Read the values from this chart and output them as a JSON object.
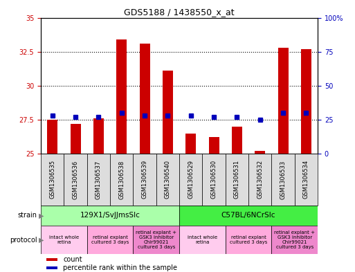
{
  "title": "GDS5188 / 1438550_x_at",
  "samples": [
    "GSM1306535",
    "GSM1306536",
    "GSM1306537",
    "GSM1306538",
    "GSM1306539",
    "GSM1306540",
    "GSM1306529",
    "GSM1306530",
    "GSM1306531",
    "GSM1306532",
    "GSM1306533",
    "GSM1306534"
  ],
  "count_values": [
    27.5,
    27.2,
    27.6,
    33.4,
    33.1,
    31.1,
    26.5,
    26.2,
    27.0,
    25.2,
    32.8,
    32.7
  ],
  "percentile_pct": [
    28,
    27,
    27,
    30,
    28,
    28,
    28,
    27,
    27,
    25,
    30,
    30
  ],
  "ylim_left": [
    25,
    35
  ],
  "ylim_right": [
    0,
    100
  ],
  "yticks_left": [
    25,
    27.5,
    30,
    32.5,
    35
  ],
  "yticks_right": [
    0,
    25,
    50,
    75,
    100
  ],
  "ytick_labels_left": [
    "25",
    "27.5",
    "30",
    "32.5",
    "35"
  ],
  "ytick_labels_right": [
    "0",
    "25",
    "50",
    "75",
    "100%"
  ],
  "bar_color": "#cc0000",
  "percentile_color": "#0000bb",
  "bar_width": 0.45,
  "strains": [
    {
      "label": "129X1/SvJJmsSlc",
      "start": 0,
      "end": 6,
      "color": "#aaffaa"
    },
    {
      "label": "C57BL/6NCrSlc",
      "start": 6,
      "end": 12,
      "color": "#44ee44"
    }
  ],
  "protocols": [
    {
      "label": "intact whole\nretina",
      "start": 0,
      "end": 2,
      "color": "#ffccee"
    },
    {
      "label": "retinal explant\ncultured 3 days",
      "start": 2,
      "end": 4,
      "color": "#ffaadd"
    },
    {
      "label": "retinal explant +\nGSK3 inhibitor\nChir99021\ncultured 3 days",
      "start": 4,
      "end": 6,
      "color": "#ee88cc"
    },
    {
      "label": "intact whole\nretina",
      "start": 6,
      "end": 8,
      "color": "#ffccee"
    },
    {
      "label": "retinal explant\ncultured 3 days",
      "start": 8,
      "end": 10,
      "color": "#ffaadd"
    },
    {
      "label": "retinal explant +\nGSK3 inhibitor\nChir99021\ncultured 3 days",
      "start": 10,
      "end": 12,
      "color": "#ee88cc"
    }
  ],
  "strain_row_label": "strain",
  "protocol_row_label": "protocol",
  "count_legend": "count",
  "percentile_legend": "percentile rank within the sample",
  "background_color": "#ffffff",
  "tick_color_left": "#cc0000",
  "tick_color_right": "#0000bb",
  "sample_bg_color": "#dddddd",
  "grid_yticks": [
    27.5,
    30,
    32.5
  ]
}
